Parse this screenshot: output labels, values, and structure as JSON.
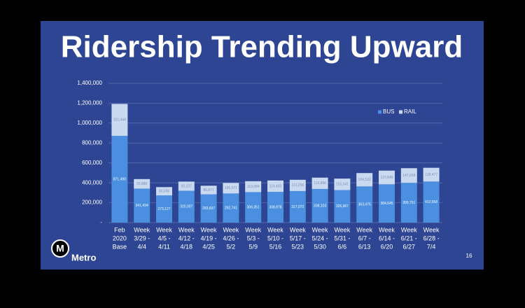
{
  "chart_data": {
    "type": "stacked-bar",
    "title": "Ridership Trending Upward",
    "categories": [
      [
        "Feb",
        "2020",
        "Base"
      ],
      [
        "Week",
        "3/29 -",
        "4/4"
      ],
      [
        "Week",
        "4/5 -",
        "4/11"
      ],
      [
        "Week",
        "4/12 -",
        "4/18"
      ],
      [
        "Week",
        "4/19 -",
        "4/25"
      ],
      [
        "Week",
        "4/26 -",
        "5/2"
      ],
      [
        "Week",
        "5/3 -",
        "5/9"
      ],
      [
        "Week",
        "5/10 -",
        "5/16"
      ],
      [
        "Week",
        "5/17 -",
        "5/23"
      ],
      [
        "Week",
        "5/24 -",
        "5/30"
      ],
      [
        "Week",
        "5/31 -",
        "6/6"
      ],
      [
        "Week",
        "6/7 -",
        "6/13"
      ],
      [
        "Week",
        "6/14 -",
        "6/20"
      ],
      [
        "Week",
        "6/21 -",
        "6/27"
      ],
      [
        "Week",
        "6/28 -",
        "7/4"
      ]
    ],
    "series": [
      {
        "name": "BUS",
        "color": "#4a8fe0",
        "values": [
          871490,
          341434,
          273127,
          320007,
          283697,
          292741,
          306351,
          308878,
          317072,
          338103,
          326967,
          363475,
          384645,
          399751,
          412558
        ],
        "value_labels": [
          "871,490",
          "341,434",
          "273,127",
          "320,007",
          "283,697",
          "292,741",
          "306,351",
          "308,878",
          "317,072",
          "338,103",
          "326,967",
          "363,475",
          "384,645",
          "399,751",
          "412,558"
        ]
      },
      {
        "name": "RAIL",
        "color": "#c9daf0",
        "values": [
          321444,
          95889,
          83556,
          92227,
          86877,
          105571,
          110094,
          114433,
          113256,
          113890,
          115341,
          134532,
          137849,
          147008,
          138477
        ],
        "value_labels": [
          "321,444",
          "95,889",
          "83,556",
          "92,227",
          "86,877",
          "105,571",
          "110,094",
          "114,433",
          "113,256",
          "113,890",
          "115,341",
          "134,532",
          "137,849",
          "147,008",
          "138,477"
        ]
      }
    ],
    "ylim": [
      0,
      1400000
    ],
    "yticks": [
      {
        "value": 0,
        "label": "-"
      },
      {
        "value": 200000,
        "label": "200,000"
      },
      {
        "value": 400000,
        "label": "400,000"
      },
      {
        "value": 600000,
        "label": "600,000"
      },
      {
        "value": 800000,
        "label": "800,000"
      },
      {
        "value": 1000000,
        "label": "1,000,000"
      },
      {
        "value": 1200000,
        "label": "1,200,000"
      },
      {
        "value": 1400000,
        "label": "1,400,000"
      }
    ],
    "grid": true,
    "legend": "upper right"
  },
  "slide": {
    "logo_mark": "M",
    "logo_text": "Metro",
    "page_number": "16"
  }
}
